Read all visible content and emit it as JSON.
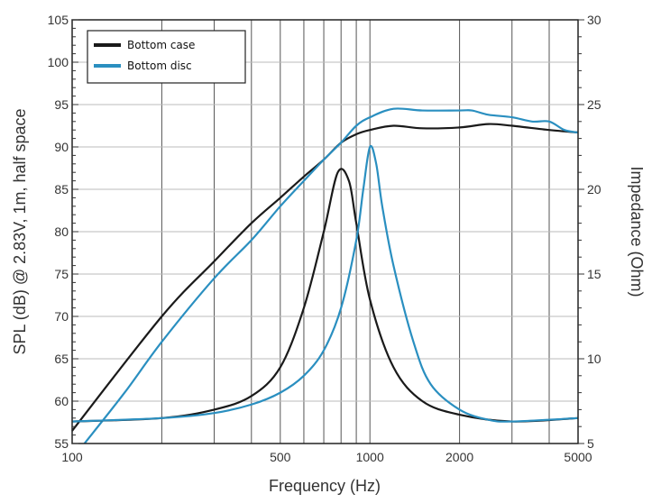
{
  "chart_data": {
    "type": "line",
    "title": "",
    "xlabel": "Frequency (Hz)",
    "ylabel": "SPL (dB) @ 2.83V, 1m, half space",
    "y2label": "Impedance (Ohm)",
    "xscale": "log",
    "xlim": [
      100,
      5000
    ],
    "ylim": [
      55,
      105
    ],
    "y2lim": [
      5,
      30
    ],
    "grid": true,
    "legend_placement": "top-left",
    "x_tick_labels": [
      "100",
      "500",
      "1000",
      "2000",
      "5000"
    ],
    "x_ticks": [
      100,
      500,
      1000,
      2000,
      5000
    ],
    "x_gridlines": [
      200,
      300,
      400,
      500,
      600,
      700,
      800,
      900,
      1000,
      2000,
      3000,
      4000
    ],
    "y_ticks": [
      55,
      60,
      65,
      70,
      75,
      80,
      85,
      90,
      95,
      100,
      105
    ],
    "y2_ticks": [
      5,
      10,
      15,
      20,
      25,
      30
    ],
    "colors": {
      "Bottom case": "#1a1a1a",
      "Bottom disc": "#2a8fc0"
    },
    "series": [
      {
        "name": "Bottom case",
        "axis": "left",
        "quantity": "SPL",
        "x": [
          100,
          200,
          300,
          400,
          500,
          600,
          700,
          800,
          900,
          1000,
          1200,
          1500,
          2000,
          2500,
          3000,
          4000,
          5000
        ],
        "y": [
          56.5,
          70,
          76.5,
          81,
          84,
          86.5,
          88.5,
          90.5,
          91.5,
          92,
          92.5,
          92.2,
          92.3,
          92.7,
          92.5,
          92,
          91.7
        ]
      },
      {
        "name": "Bottom disc",
        "axis": "left",
        "quantity": "SPL",
        "x": [
          110,
          150,
          200,
          300,
          400,
          500,
          600,
          700,
          800,
          900,
          1000,
          1200,
          1500,
          2000,
          2200,
          2500,
          3000,
          3500,
          4000,
          4500,
          5000
        ],
        "y": [
          55,
          61,
          67,
          74.5,
          79,
          83,
          86,
          88.5,
          90.5,
          92.5,
          93.5,
          94.5,
          94.3,
          94.3,
          94.3,
          93.8,
          93.5,
          93,
          93,
          92,
          91.7
        ]
      },
      {
        "name": "Bottom case",
        "axis": "right",
        "quantity": "Impedance",
        "x": [
          100,
          200,
          300,
          400,
          500,
          600,
          700,
          780,
          850,
          900,
          1000,
          1200,
          1500,
          2000,
          3000,
          5000
        ],
        "y": [
          6.3,
          6.5,
          7,
          7.8,
          9.5,
          13,
          17.5,
          21,
          20.5,
          18,
          13.5,
          9.5,
          7.5,
          6.7,
          6.3,
          6.5
        ]
      },
      {
        "name": "Bottom disc",
        "axis": "right",
        "quantity": "Impedance",
        "x": [
          100,
          200,
          300,
          400,
          500,
          600,
          700,
          800,
          900,
          950,
          1000,
          1050,
          1100,
          1200,
          1400,
          1600,
          2000,
          2500,
          3000,
          5000
        ],
        "y": [
          6.3,
          6.5,
          6.8,
          7.3,
          8,
          9,
          10.5,
          13,
          17,
          20,
          22.5,
          21.5,
          19,
          15.5,
          11,
          8.5,
          7,
          6.4,
          6.3,
          6.5
        ]
      }
    ],
    "legend": [
      "Bottom case",
      "Bottom disc"
    ]
  }
}
